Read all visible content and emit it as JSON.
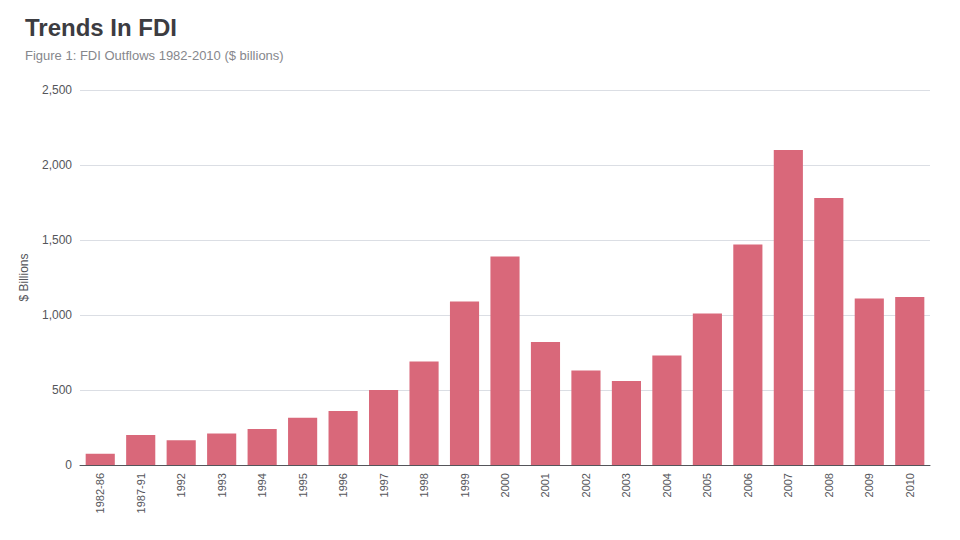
{
  "chart_data": {
    "type": "bar",
    "title": "Trends In FDI",
    "subtitle": "Figure 1: FDI Outflows 1982-2010 ($ billions)",
    "ylabel": "$ Billions",
    "categories": [
      "1982-86",
      "1987-91",
      "1992",
      "1993",
      "1994",
      "1995",
      "1996",
      "1997",
      "1998",
      "1999",
      "2000",
      "2001",
      "2002",
      "2003",
      "2004",
      "2005",
      "2006",
      "2007",
      "2008",
      "2009",
      "2010"
    ],
    "values": [
      75,
      200,
      165,
      210,
      240,
      315,
      360,
      500,
      690,
      1090,
      1390,
      820,
      630,
      560,
      730,
      1010,
      1470,
      2100,
      1780,
      1110,
      1120
    ],
    "color": "#d9687a",
    "ylim": [
      0,
      2500
    ],
    "yticks": [
      0,
      500,
      {
        "value": 1000,
        "label": "1,000"
      },
      {
        "value": 1500,
        "label": "1,500"
      },
      {
        "value": 2000,
        "label": "2,000"
      },
      {
        "value": 2500,
        "label": "2,500"
      }
    ],
    "grid": true
  }
}
